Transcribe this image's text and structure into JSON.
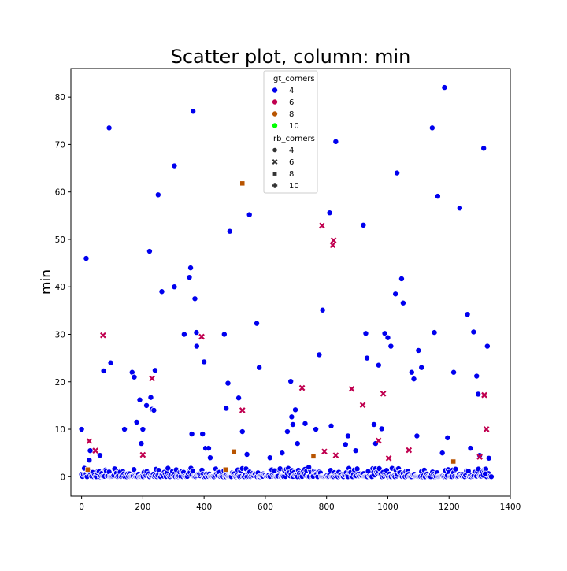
{
  "chart_data": {
    "type": "scatter",
    "title": "Scatter plot, column: min",
    "xlabel": "",
    "ylabel": "min",
    "xlim": [
      -35,
      1400
    ],
    "ylim": [
      -4.1,
      86
    ],
    "x_ticks": [
      0,
      200,
      400,
      600,
      800,
      1000,
      1200,
      1400
    ],
    "y_ticks": [
      0,
      10,
      20,
      30,
      40,
      50,
      60,
      70,
      80
    ],
    "grid": false,
    "legend": {
      "placement": "top-center",
      "hue_title": "gt_corners",
      "hue_entries": [
        {
          "label": "4",
          "color": "#0000ee"
        },
        {
          "label": "6",
          "color": "#c0004f"
        },
        {
          "label": "8",
          "color": "#b85400"
        },
        {
          "label": "10",
          "color": "#00ff00"
        }
      ],
      "style_title": "rb_corners",
      "style_entries": [
        {
          "label": "4",
          "marker": "circle"
        },
        {
          "label": "6",
          "marker": "x"
        },
        {
          "label": "8",
          "marker": "square"
        },
        {
          "label": "10",
          "marker": "plus"
        }
      ]
    },
    "series": [
      {
        "gt_corners": "4",
        "rb_corners": "4",
        "color": "#0000ee",
        "marker": "circle",
        "points": [
          [
            0,
            10
          ],
          [
            15,
            46
          ],
          [
            25,
            3.5
          ],
          [
            28,
            5.5
          ],
          [
            90,
            73.5
          ],
          [
            95,
            24
          ],
          [
            72,
            22.3
          ],
          [
            60,
            4.5
          ],
          [
            140,
            10
          ],
          [
            165,
            22
          ],
          [
            172,
            21
          ],
          [
            180,
            11.5
          ],
          [
            190,
            16.2
          ],
          [
            195,
            7
          ],
          [
            200,
            10
          ],
          [
            212,
            15
          ],
          [
            222,
            47.5
          ],
          [
            226,
            16.7
          ],
          [
            230,
            14.2
          ],
          [
            236,
            14
          ],
          [
            240,
            22.4
          ],
          [
            250,
            59.4
          ],
          [
            262,
            39
          ],
          [
            303,
            65.5
          ],
          [
            303,
            40
          ],
          [
            335,
            30
          ],
          [
            352,
            42
          ],
          [
            356,
            44
          ],
          [
            360,
            9
          ],
          [
            364,
            77
          ],
          [
            370,
            37.5
          ],
          [
            375,
            30.4
          ],
          [
            376,
            27.5
          ],
          [
            395,
            9
          ],
          [
            400,
            24.2
          ],
          [
            405,
            6
          ],
          [
            415,
            6
          ],
          [
            420,
            4
          ],
          [
            466,
            30
          ],
          [
            472,
            14.4
          ],
          [
            478,
            19.7
          ],
          [
            484,
            51.7
          ],
          [
            513,
            16.6
          ],
          [
            525,
            9.5
          ],
          [
            540,
            4.7
          ],
          [
            548,
            55.2
          ],
          [
            572,
            32.3
          ],
          [
            580,
            23
          ],
          [
            615,
            4
          ],
          [
            655,
            5
          ],
          [
            672,
            9.5
          ],
          [
            683,
            20.1
          ],
          [
            686,
            12.6
          ],
          [
            690,
            11
          ],
          [
            698,
            14.1
          ],
          [
            705,
            7
          ],
          [
            730,
            11.2
          ],
          [
            742,
            2
          ],
          [
            765,
            10
          ],
          [
            776,
            25.7
          ],
          [
            787,
            35.1
          ],
          [
            810,
            55.6
          ],
          [
            815,
            10.7
          ],
          [
            830,
            70.6
          ],
          [
            862,
            6.8
          ],
          [
            870,
            8.6
          ],
          [
            895,
            5.5
          ],
          [
            920,
            53
          ],
          [
            928,
            30.2
          ],
          [
            932,
            25
          ],
          [
            955,
            11
          ],
          [
            960,
            7
          ],
          [
            970,
            23.5
          ],
          [
            980,
            10.1
          ],
          [
            990,
            30.2
          ],
          [
            1000,
            29.3
          ],
          [
            1010,
            27.5
          ],
          [
            1025,
            38.5
          ],
          [
            1030,
            64
          ],
          [
            1045,
            41.7
          ],
          [
            1050,
            36.6
          ],
          [
            1078,
            22
          ],
          [
            1085,
            20.6
          ],
          [
            1095,
            8.6
          ],
          [
            1100,
            26.6
          ],
          [
            1110,
            23
          ],
          [
            1145,
            73.5
          ],
          [
            1152,
            30.4
          ],
          [
            1163,
            59.1
          ],
          [
            1178,
            5
          ],
          [
            1185,
            82
          ],
          [
            1195,
            8.2
          ],
          [
            1215,
            22
          ],
          [
            1235,
            56.6
          ],
          [
            1260,
            34.2
          ],
          [
            1270,
            6
          ],
          [
            1280,
            30.5
          ],
          [
            1290,
            21.2
          ],
          [
            1295,
            17.4
          ],
          [
            1300,
            4.5
          ],
          [
            1313,
            69.2
          ],
          [
            1325,
            27.5
          ],
          [
            1330,
            3.9
          ],
          [
            1318,
            0.6
          ]
        ]
      },
      {
        "gt_corners": "6",
        "rb_corners": "6",
        "color": "#c0004f",
        "marker": "x",
        "points": [
          [
            25,
            7.5
          ],
          [
            45,
            5.5
          ],
          [
            70,
            29.8
          ],
          [
            200,
            4.6
          ],
          [
            230,
            20.7
          ],
          [
            392,
            29.5
          ],
          [
            525,
            14
          ],
          [
            720,
            18.7
          ],
          [
            785,
            52.9
          ],
          [
            793,
            5.3
          ],
          [
            820,
            48.8
          ],
          [
            823,
            49.8
          ],
          [
            830,
            4.5
          ],
          [
            882,
            18.5
          ],
          [
            918,
            15.1
          ],
          [
            970,
            7.6
          ],
          [
            985,
            17.5
          ],
          [
            1003,
            3.9
          ],
          [
            1069,
            5.6
          ],
          [
            1315,
            17.2
          ],
          [
            1322,
            10
          ],
          [
            1300,
            4.2
          ]
        ]
      },
      {
        "gt_corners": "8",
        "rb_corners": "8",
        "color": "#b85400",
        "marker": "square",
        "points": [
          [
            525,
            61.8
          ],
          [
            498,
            5.3
          ],
          [
            757,
            4.3
          ],
          [
            1214,
            3.2
          ],
          [
            470,
            1.5
          ],
          [
            20,
            1.5
          ]
        ]
      }
    ]
  }
}
